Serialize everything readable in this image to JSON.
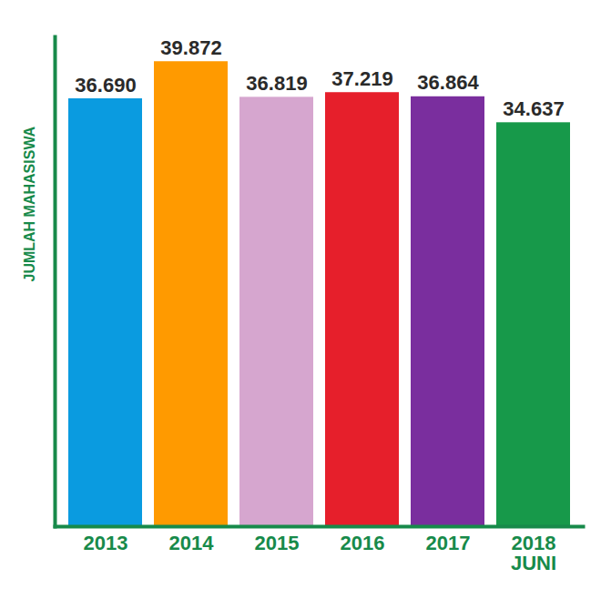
{
  "chart_data": {
    "type": "bar",
    "y_label": "JUMLAH MAHASISWA",
    "categories": [
      "2013",
      "2014",
      "2015",
      "2016",
      "2017",
      "2018\nJUNI"
    ],
    "values": [
      36690,
      39872,
      36819,
      37219,
      36864,
      34637
    ],
    "value_labels": [
      "36.690",
      "39.872",
      "36.819",
      "37.219",
      "36.864",
      "34.637"
    ],
    "colors": [
      "#0a9be0",
      "#ff9a00",
      "#d6a6cf",
      "#e61f2b",
      "#7a2e9e",
      "#17994a"
    ],
    "ylim": [
      0,
      42000
    ],
    "yticks": [],
    "data_labels": true,
    "tick_labels": "x"
  }
}
